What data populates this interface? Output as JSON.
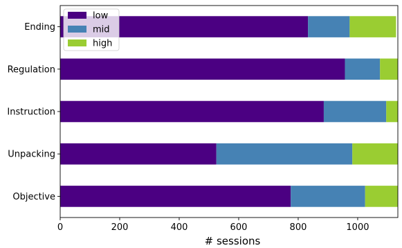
{
  "chart_data": {
    "type": "bar",
    "orientation": "horizontal",
    "stacked": true,
    "categories": [
      "Objective",
      "Unpacking",
      "Instruction",
      "Regulation",
      "Ending"
    ],
    "series": [
      {
        "name": "low",
        "color": "#4b0082",
        "values": [
          775,
          525,
          886,
          957,
          833
        ]
      },
      {
        "name": "mid",
        "color": "#4682b4",
        "values": [
          250,
          457,
          210,
          118,
          140
        ]
      },
      {
        "name": "high",
        "color": "#9acd32",
        "values": [
          110,
          153,
          40,
          60,
          156
        ]
      }
    ],
    "xlabel": "# sessions",
    "ylabel": "",
    "xlim": [
      0,
      1135
    ],
    "xticks": [
      0,
      200,
      400,
      600,
      800,
      1000
    ],
    "grid": false,
    "legend_position": "top-left"
  }
}
